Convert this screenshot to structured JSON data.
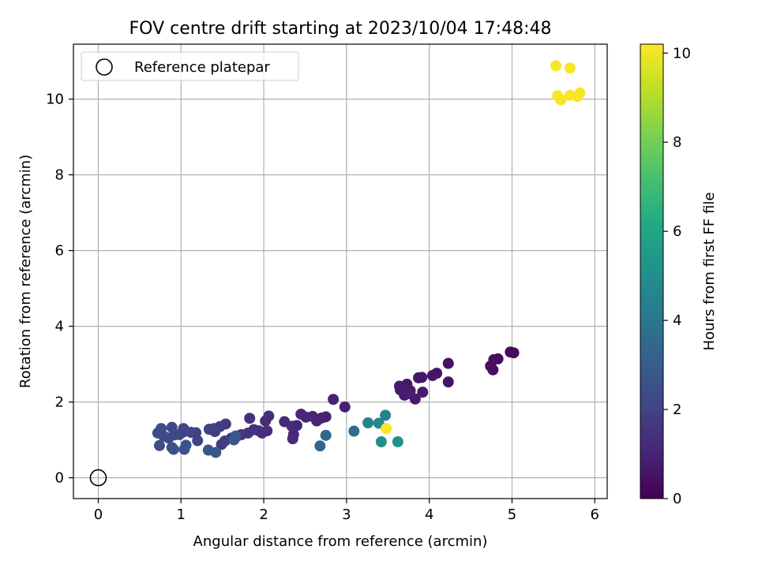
{
  "chart_data": {
    "type": "scatter",
    "title": "FOV centre drift starting at 2023/10/04 17:48:48",
    "xlabel": "Angular distance from reference (arcmin)",
    "ylabel": "Rotation from reference (arcmin)",
    "xlim": [
      -0.3,
      6.15
    ],
    "ylim": [
      -0.55,
      11.45
    ],
    "xticks": [
      0,
      1,
      2,
      3,
      4,
      5,
      6
    ],
    "yticks": [
      0,
      2,
      4,
      6,
      8,
      10
    ],
    "grid": true,
    "legend": {
      "position": "top-left",
      "entries": [
        "Reference platepar"
      ]
    },
    "reference_point": {
      "x": 0,
      "y": 0,
      "label": "Reference platepar"
    },
    "colorbar": {
      "label": "Hours from first FF file",
      "colormap": "viridis",
      "range": [
        0,
        10.2
      ],
      "ticks": [
        0,
        2,
        4,
        6,
        8,
        10
      ]
    },
    "points": [
      {
        "x": 4.98,
        "y": 3.32,
        "h": 0.3
      },
      {
        "x": 5.02,
        "y": 3.3,
        "h": 0.3
      },
      {
        "x": 4.83,
        "y": 3.14,
        "h": 0.35
      },
      {
        "x": 4.78,
        "y": 3.12,
        "h": 0.35
      },
      {
        "x": 4.74,
        "y": 2.95,
        "h": 0.4
      },
      {
        "x": 4.77,
        "y": 2.85,
        "h": 0.4
      },
      {
        "x": 4.23,
        "y": 3.02,
        "h": 0.5
      },
      {
        "x": 4.23,
        "y": 2.53,
        "h": 0.55
      },
      {
        "x": 4.09,
        "y": 2.76,
        "h": 0.55
      },
      {
        "x": 4.04,
        "y": 2.7,
        "h": 0.6
      },
      {
        "x": 3.91,
        "y": 2.65,
        "h": 0.65
      },
      {
        "x": 3.87,
        "y": 2.64,
        "h": 0.65
      },
      {
        "x": 3.92,
        "y": 2.26,
        "h": 0.7
      },
      {
        "x": 3.83,
        "y": 2.08,
        "h": 0.7
      },
      {
        "x": 3.77,
        "y": 2.3,
        "h": 0.75
      },
      {
        "x": 3.73,
        "y": 2.47,
        "h": 0.75
      },
      {
        "x": 3.64,
        "y": 2.42,
        "h": 0.8
      },
      {
        "x": 3.65,
        "y": 2.32,
        "h": 0.8
      },
      {
        "x": 3.7,
        "y": 2.18,
        "h": 0.8
      },
      {
        "x": 3.75,
        "y": 2.22,
        "h": 0.85
      },
      {
        "x": 2.98,
        "y": 1.87,
        "h": 0.9
      },
      {
        "x": 2.84,
        "y": 2.07,
        "h": 0.95
      },
      {
        "x": 2.75,
        "y": 1.61,
        "h": 1.0
      },
      {
        "x": 2.7,
        "y": 1.58,
        "h": 1.0
      },
      {
        "x": 2.64,
        "y": 1.5,
        "h": 1.05
      },
      {
        "x": 2.59,
        "y": 1.62,
        "h": 1.05
      },
      {
        "x": 2.51,
        "y": 1.6,
        "h": 1.1
      },
      {
        "x": 2.45,
        "y": 1.68,
        "h": 1.1
      },
      {
        "x": 2.4,
        "y": 1.38,
        "h": 1.15
      },
      {
        "x": 2.36,
        "y": 1.14,
        "h": 1.15
      },
      {
        "x": 2.35,
        "y": 1.03,
        "h": 1.2
      },
      {
        "x": 2.34,
        "y": 1.36,
        "h": 1.2
      },
      {
        "x": 2.25,
        "y": 1.48,
        "h": 1.25
      },
      {
        "x": 2.06,
        "y": 1.63,
        "h": 1.3
      },
      {
        "x": 2.04,
        "y": 1.24,
        "h": 1.35
      },
      {
        "x": 2.02,
        "y": 1.5,
        "h": 1.35
      },
      {
        "x": 1.98,
        "y": 1.18,
        "h": 1.4
      },
      {
        "x": 1.94,
        "y": 1.24,
        "h": 1.4
      },
      {
        "x": 1.88,
        "y": 1.27,
        "h": 1.45
      },
      {
        "x": 1.83,
        "y": 1.57,
        "h": 1.45
      },
      {
        "x": 1.81,
        "y": 1.18,
        "h": 1.5
      },
      {
        "x": 1.73,
        "y": 1.14,
        "h": 1.55
      },
      {
        "x": 1.68,
        "y": 1.1,
        "h": 1.6
      },
      {
        "x": 1.61,
        "y": 1.05,
        "h": 1.65
      },
      {
        "x": 1.54,
        "y": 1.42,
        "h": 1.7
      },
      {
        "x": 1.53,
        "y": 0.97,
        "h": 1.75
      },
      {
        "x": 1.49,
        "y": 0.88,
        "h": 1.8
      },
      {
        "x": 1.47,
        "y": 1.35,
        "h": 1.8
      },
      {
        "x": 1.41,
        "y": 1.22,
        "h": 1.85
      },
      {
        "x": 1.4,
        "y": 1.3,
        "h": 1.9
      },
      {
        "x": 1.34,
        "y": 1.28,
        "h": 1.95
      },
      {
        "x": 1.2,
        "y": 0.98,
        "h": 2.0
      },
      {
        "x": 1.18,
        "y": 1.19,
        "h": 2.0
      },
      {
        "x": 1.12,
        "y": 1.2,
        "h": 2.05
      },
      {
        "x": 1.03,
        "y": 1.3,
        "h": 2.1
      },
      {
        "x": 1.02,
        "y": 1.2,
        "h": 2.1
      },
      {
        "x": 0.98,
        "y": 1.14,
        "h": 2.15
      },
      {
        "x": 0.92,
        "y": 1.13,
        "h": 2.15
      },
      {
        "x": 0.89,
        "y": 1.33,
        "h": 2.2
      },
      {
        "x": 0.85,
        "y": 1.05,
        "h": 2.2
      },
      {
        "x": 0.79,
        "y": 1.1,
        "h": 2.25
      },
      {
        "x": 0.76,
        "y": 1.3,
        "h": 2.3
      },
      {
        "x": 0.72,
        "y": 1.18,
        "h": 2.35
      },
      {
        "x": 0.74,
        "y": 0.85,
        "h": 2.4
      },
      {
        "x": 0.89,
        "y": 0.8,
        "h": 2.45
      },
      {
        "x": 0.91,
        "y": 0.75,
        "h": 2.5
      },
      {
        "x": 1.04,
        "y": 0.75,
        "h": 2.55
      },
      {
        "x": 1.06,
        "y": 0.86,
        "h": 2.6
      },
      {
        "x": 1.33,
        "y": 0.73,
        "h": 2.7
      },
      {
        "x": 1.42,
        "y": 0.67,
        "h": 2.75
      },
      {
        "x": 1.64,
        "y": 1.0,
        "h": 2.8
      },
      {
        "x": 1.66,
        "y": 1.1,
        "h": 2.85
      },
      {
        "x": 2.68,
        "y": 0.84,
        "h": 3.3
      },
      {
        "x": 2.75,
        "y": 1.12,
        "h": 3.4
      },
      {
        "x": 3.09,
        "y": 1.23,
        "h": 3.6
      },
      {
        "x": 3.26,
        "y": 1.45,
        "h": 4.6
      },
      {
        "x": 3.39,
        "y": 1.44,
        "h": 4.7
      },
      {
        "x": 3.47,
        "y": 1.65,
        "h": 4.5
      },
      {
        "x": 3.42,
        "y": 0.95,
        "h": 5.0
      },
      {
        "x": 3.62,
        "y": 0.95,
        "h": 5.2
      },
      {
        "x": 3.48,
        "y": 1.3,
        "h": 10.1
      },
      {
        "x": 5.53,
        "y": 10.88,
        "h": 10.1
      },
      {
        "x": 5.7,
        "y": 10.82,
        "h": 10.1
      },
      {
        "x": 5.55,
        "y": 10.09,
        "h": 10.1
      },
      {
        "x": 5.59,
        "y": 9.98,
        "h": 10.1
      },
      {
        "x": 5.7,
        "y": 10.1,
        "h": 10.1
      },
      {
        "x": 5.79,
        "y": 10.07,
        "h": 10.1
      },
      {
        "x": 5.82,
        "y": 10.16,
        "h": 10.1
      }
    ]
  }
}
